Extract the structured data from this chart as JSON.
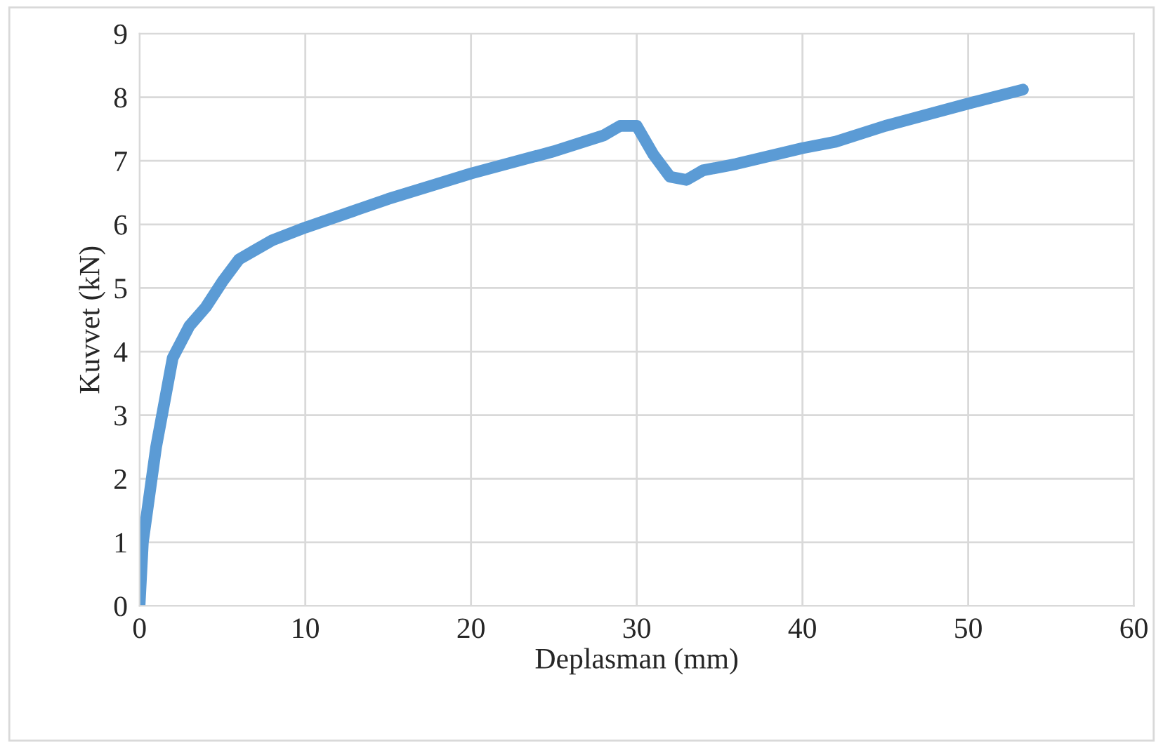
{
  "chart_data": {
    "type": "line",
    "xlabel": "Deplasman (mm)",
    "ylabel": "Kuvvet (kN)",
    "x": [
      0,
      0.2,
      1,
      2,
      3,
      4,
      5,
      6,
      7,
      8,
      10,
      15,
      20,
      25,
      28,
      29,
      30,
      31,
      32,
      33,
      34,
      36,
      40,
      42,
      45,
      50,
      53.3
    ],
    "series": [
      {
        "color": "#5b9bd5",
        "values": [
          0,
          1.0,
          2.5,
          3.9,
          4.4,
          4.7,
          5.1,
          5.45,
          5.6,
          5.75,
          5.95,
          6.4,
          6.8,
          7.15,
          7.4,
          7.55,
          7.55,
          7.1,
          6.75,
          6.7,
          6.85,
          6.95,
          7.2,
          7.3,
          7.55,
          7.9,
          8.12
        ]
      }
    ],
    "xlim": [
      0,
      60
    ],
    "xticks": [
      0,
      10,
      20,
      30,
      40,
      50,
      60
    ],
    "ylim": [
      0,
      9
    ],
    "yticks": [
      0,
      1,
      2,
      3,
      4,
      5,
      6,
      7,
      8,
      9
    ],
    "grid": true,
    "marker": "none",
    "line_style": "solid"
  }
}
